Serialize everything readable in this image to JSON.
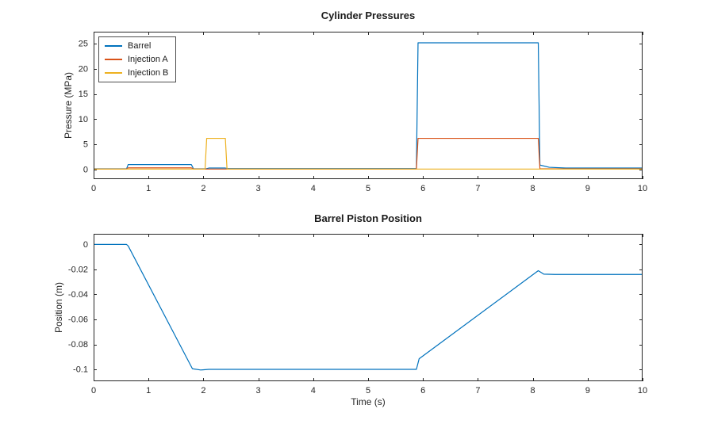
{
  "figure": {
    "background": "#ffffff",
    "axis_color": "#262626"
  },
  "chart_data": [
    {
      "type": "line",
      "title": "Cylinder Pressures",
      "xlabel": "",
      "ylabel": "Pressure (MPa)",
      "xlim": [
        0,
        10
      ],
      "ylim": [
        -1.9,
        27.4
      ],
      "xticks": [
        0,
        1,
        2,
        3,
        4,
        5,
        6,
        7,
        8,
        9,
        10
      ],
      "xtick_labels": [
        "0",
        "1",
        "2",
        "3",
        "4",
        "5",
        "6",
        "7",
        "8",
        "9",
        "10"
      ],
      "yticks": [
        0,
        5,
        10,
        15,
        20,
        25
      ],
      "ytick_labels": [
        "0",
        "5",
        "10",
        "15",
        "20",
        "25"
      ],
      "grid": false,
      "legend": {
        "position": "top-left",
        "entries": [
          "Barrel",
          "Injection A",
          "Injection B"
        ]
      },
      "series": [
        {
          "name": "Barrel",
          "color": "#0072BD",
          "x": [
            0,
            0.6,
            0.63,
            1.78,
            1.82,
            2.05,
            2.1,
            2.4,
            2.45,
            5.88,
            5.91,
            8.1,
            8.13,
            8.3,
            8.6,
            10
          ],
          "y": [
            0.15,
            0.15,
            1.0,
            1.0,
            0.15,
            0.15,
            0.3,
            0.3,
            0.2,
            0.2,
            25.2,
            25.2,
            0.9,
            0.45,
            0.3,
            0.3
          ]
        },
        {
          "name": "Injection A",
          "color": "#D95319",
          "x": [
            0,
            0.6,
            0.63,
            1.78,
            1.82,
            5.88,
            5.91,
            8.1,
            8.13,
            10
          ],
          "y": [
            0.1,
            0.1,
            0.35,
            0.35,
            0.1,
            0.1,
            6.2,
            6.2,
            0.15,
            0.15
          ]
        },
        {
          "name": "Injection B",
          "color": "#EDB120",
          "x": [
            0,
            2.03,
            2.06,
            2.4,
            2.43,
            10
          ],
          "y": [
            0.1,
            0.1,
            6.2,
            6.2,
            0.1,
            0.1
          ]
        }
      ]
    },
    {
      "type": "line",
      "title": "Barrel Piston Position",
      "xlabel": "Time (s)",
      "ylabel": "Position (m)",
      "xlim": [
        0,
        10
      ],
      "ylim": [
        -0.1095,
        0.0085
      ],
      "xticks": [
        0,
        1,
        2,
        3,
        4,
        5,
        6,
        7,
        8,
        9,
        10
      ],
      "xtick_labels": [
        "0",
        "1",
        "2",
        "3",
        "4",
        "5",
        "6",
        "7",
        "8",
        "9",
        "10"
      ],
      "yticks": [
        0,
        -0.02,
        -0.04,
        -0.06,
        -0.08,
        -0.1
      ],
      "ytick_labels": [
        "0",
        "-0.02",
        "-0.04",
        "-0.06",
        "-0.08",
        "-0.1"
      ],
      "grid": false,
      "series": [
        {
          "name": "Barrel",
          "color": "#0072BD",
          "x": [
            0,
            0.6,
            0.63,
            1.8,
            1.95,
            2.1,
            5.88,
            5.93,
            8.1,
            8.2,
            8.4,
            10
          ],
          "y": [
            0,
            0,
            -0.0012,
            -0.0995,
            -0.1005,
            -0.1,
            -0.1,
            -0.0915,
            -0.021,
            -0.0238,
            -0.024,
            -0.024
          ]
        }
      ]
    }
  ]
}
